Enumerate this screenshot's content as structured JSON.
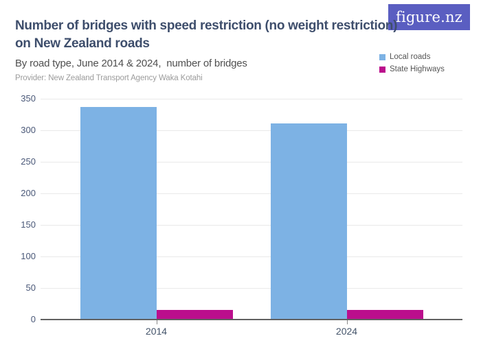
{
  "brand": {
    "logo_text": "figure.nz",
    "logo_bg": "#5A5EC1",
    "logo_fg": "#ffffff"
  },
  "header": {
    "title": "Number of bridges with speed restriction (no weight restriction) on New Zealand roads",
    "title_lines": [
      "Number of bridges with speed restriction (no weight restriction)",
      "on New Zealand roads"
    ],
    "subtitle": "By road type, June 2014 & 2024,  number of bridges",
    "provider": "Provider: New Zealand Transport Agency Waka Kotahi"
  },
  "legend": [
    {
      "label": "Local roads",
      "color": "#7DB2E4"
    },
    {
      "label": "State Highways",
      "color": "#BB0E8C"
    }
  ],
  "chart_data": {
    "type": "bar",
    "title": "Number of bridges with speed restriction (no weight restriction) on New Zealand roads",
    "subtitle": "By road type, June 2014 & 2024, number of bridges",
    "categories": [
      "2014",
      "2024"
    ],
    "series": [
      {
        "name": "Local roads",
        "color": "#7DB2E4",
        "values": [
          337,
          311
        ]
      },
      {
        "name": "State Highways",
        "color": "#BB0E8C",
        "values": [
          15,
          15
        ]
      }
    ],
    "xlabel": "",
    "ylabel": "",
    "ylim": [
      0,
      350
    ],
    "yticks": [
      0,
      50,
      100,
      150,
      200,
      250,
      300,
      350
    ],
    "grid": "horizontal",
    "legend_position": "top-right",
    "colors": {
      "title_text": "#3E4E6C",
      "axis_label_text": "#4A5878",
      "gridline": "#E9E9E9",
      "axis_line": "#606060"
    }
  }
}
